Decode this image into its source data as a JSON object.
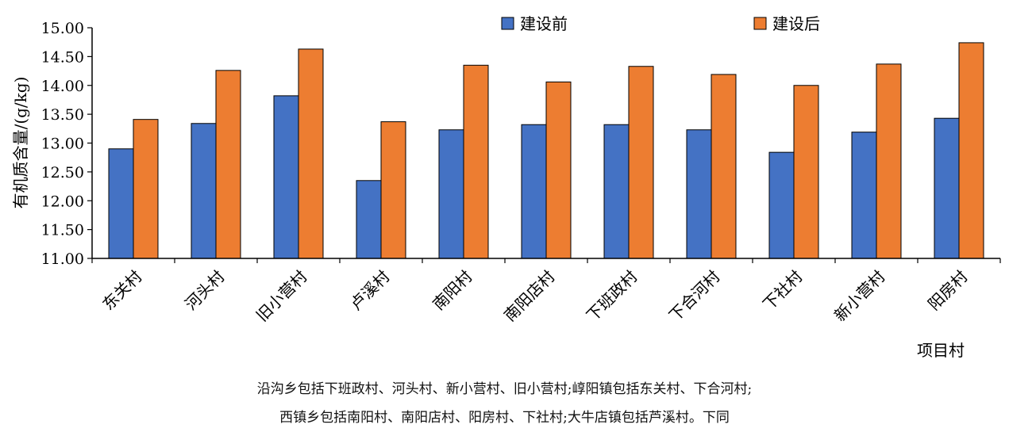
{
  "chart_data": {
    "type": "bar",
    "categories": [
      "东关村",
      "河头村",
      "旧小营村",
      "卢溪村",
      "南阳村",
      "南阳店村",
      "下班政村",
      "下合河村",
      "下社村",
      "新小营村",
      "阳房村"
    ],
    "series": [
      {
        "name": "建设前",
        "color": "#4472c4",
        "values": [
          12.9,
          13.34,
          13.82,
          12.35,
          13.23,
          13.32,
          13.32,
          13.23,
          12.84,
          13.19,
          13.43
        ]
      },
      {
        "name": "建设后",
        "color": "#ed7d31",
        "values": [
          13.41,
          14.26,
          14.63,
          13.37,
          14.35,
          14.06,
          14.33,
          14.19,
          14.0,
          14.37,
          14.74
        ]
      }
    ],
    "xlabel": "项目村",
    "ylabel": "有机质含量/(g/kg)",
    "ylim": [
      11.0,
      15.0
    ],
    "yticks": [
      "11.00",
      "11.50",
      "12.00",
      "12.50",
      "13.00",
      "13.50",
      "14.00",
      "14.50",
      "15.00"
    ],
    "legend_position": "top-center",
    "grid": false
  },
  "caption": {
    "line1": "沿沟乡包括下班政村、河头村、新小营村、旧小营村;崞阳镇包括东关村、下合河村;",
    "line2": "西镇乡包括南阳村、南阳店村、阳房村、下社村;大牛店镇包括芦溪村。下同"
  }
}
